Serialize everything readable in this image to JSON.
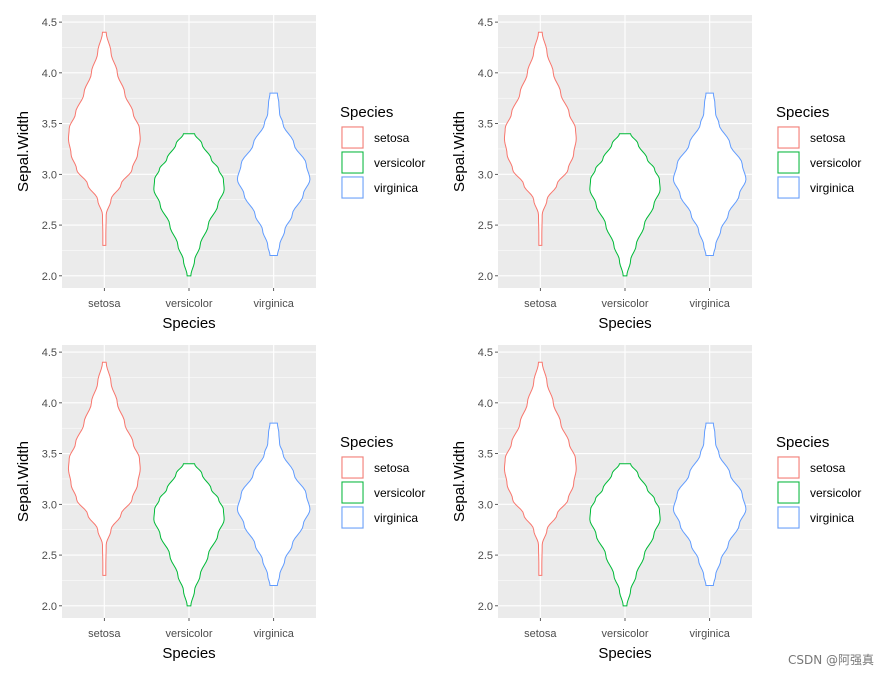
{
  "watermark": "CSDN @阿强真",
  "colors": {
    "panel_bg": "#EBEBEB",
    "grid": "#FFFFFF",
    "tick_text": "#4D4D4D",
    "setosa": "#F8766D",
    "versicolor": "#00BA38",
    "virginica": "#619CFF"
  },
  "chart_data": [
    {
      "type": "violin",
      "xlabel": "Species",
      "ylabel": "Sepal.Width",
      "categories": [
        "setosa",
        "versicolor",
        "virginica"
      ],
      "ylim": [
        1.88,
        4.57
      ],
      "yticks": [
        "2.0",
        "2.5",
        "3.0",
        "3.5",
        "4.0",
        "4.5"
      ],
      "legend": {
        "title": "Species",
        "entries": [
          "setosa",
          "versicolor",
          "virginica"
        ],
        "position": "right"
      },
      "series": [
        {
          "name": "setosa",
          "range": [
            2.3,
            4.4
          ],
          "profile": [
            [
              2.3,
              0.04
            ],
            [
              2.4,
              0.04
            ],
            [
              2.6,
              0.05
            ],
            [
              2.75,
              0.18
            ],
            [
              2.9,
              0.45
            ],
            [
              3.05,
              0.75
            ],
            [
              3.2,
              0.9
            ],
            [
              3.35,
              0.97
            ],
            [
              3.45,
              0.95
            ],
            [
              3.6,
              0.78
            ],
            [
              3.8,
              0.55
            ],
            [
              4.0,
              0.35
            ],
            [
              4.2,
              0.18
            ],
            [
              4.4,
              0.05
            ]
          ]
        },
        {
          "name": "versicolor",
          "range": [
            2.0,
            3.4
          ],
          "profile": [
            [
              2.0,
              0.05
            ],
            [
              2.15,
              0.15
            ],
            [
              2.3,
              0.3
            ],
            [
              2.5,
              0.52
            ],
            [
              2.7,
              0.78
            ],
            [
              2.85,
              0.95
            ],
            [
              2.95,
              0.93
            ],
            [
              3.05,
              0.8
            ],
            [
              3.15,
              0.6
            ],
            [
              3.3,
              0.35
            ],
            [
              3.4,
              0.15
            ]
          ]
        },
        {
          "name": "virginica",
          "range": [
            2.2,
            3.8
          ],
          "profile": [
            [
              2.2,
              0.1
            ],
            [
              2.3,
              0.16
            ],
            [
              2.45,
              0.3
            ],
            [
              2.6,
              0.5
            ],
            [
              2.8,
              0.8
            ],
            [
              2.95,
              0.98
            ],
            [
              3.1,
              0.88
            ],
            [
              3.3,
              0.55
            ],
            [
              3.5,
              0.25
            ],
            [
              3.6,
              0.16
            ],
            [
              3.7,
              0.14
            ],
            [
              3.8,
              0.1
            ]
          ]
        }
      ]
    },
    {
      "type": "violin",
      "xlabel": "Species",
      "ylabel": "Sepal.Width",
      "categories": [
        "setosa",
        "versicolor",
        "virginica"
      ],
      "ylim": [
        1.88,
        4.57
      ],
      "yticks": [
        "2.0",
        "2.5",
        "3.0",
        "3.5",
        "4.0",
        "4.5"
      ],
      "legend": {
        "title": "Species",
        "entries": [
          "setosa",
          "versicolor",
          "virginica"
        ],
        "position": "right"
      },
      "series": [
        {
          "name": "setosa",
          "range": [
            2.3,
            4.4
          ],
          "profile": [
            [
              2.3,
              0.04
            ],
            [
              2.4,
              0.04
            ],
            [
              2.6,
              0.05
            ],
            [
              2.75,
              0.18
            ],
            [
              2.9,
              0.45
            ],
            [
              3.05,
              0.75
            ],
            [
              3.2,
              0.9
            ],
            [
              3.35,
              0.97
            ],
            [
              3.45,
              0.95
            ],
            [
              3.6,
              0.78
            ],
            [
              3.8,
              0.55
            ],
            [
              4.0,
              0.35
            ],
            [
              4.2,
              0.18
            ],
            [
              4.4,
              0.05
            ]
          ]
        },
        {
          "name": "versicolor",
          "range": [
            2.0,
            3.4
          ],
          "profile": [
            [
              2.0,
              0.05
            ],
            [
              2.15,
              0.15
            ],
            [
              2.3,
              0.3
            ],
            [
              2.5,
              0.52
            ],
            [
              2.7,
              0.78
            ],
            [
              2.85,
              0.95
            ],
            [
              2.95,
              0.93
            ],
            [
              3.05,
              0.8
            ],
            [
              3.15,
              0.6
            ],
            [
              3.3,
              0.35
            ],
            [
              3.4,
              0.15
            ]
          ]
        },
        {
          "name": "virginica",
          "range": [
            2.2,
            3.8
          ],
          "profile": [
            [
              2.2,
              0.1
            ],
            [
              2.3,
              0.16
            ],
            [
              2.45,
              0.3
            ],
            [
              2.6,
              0.5
            ],
            [
              2.8,
              0.8
            ],
            [
              2.95,
              0.98
            ],
            [
              3.1,
              0.88
            ],
            [
              3.3,
              0.55
            ],
            [
              3.5,
              0.25
            ],
            [
              3.6,
              0.16
            ],
            [
              3.7,
              0.14
            ],
            [
              3.8,
              0.1
            ]
          ]
        }
      ]
    },
    {
      "type": "violin",
      "xlabel": "Species",
      "ylabel": "Sepal.Width",
      "categories": [
        "setosa",
        "versicolor",
        "virginica"
      ],
      "ylim": [
        1.88,
        4.57
      ],
      "yticks": [
        "2.0",
        "2.5",
        "3.0",
        "3.5",
        "4.0",
        "4.5"
      ],
      "legend": {
        "title": "Species",
        "entries": [
          "setosa",
          "versicolor",
          "virginica"
        ],
        "position": "right"
      },
      "series": [
        {
          "name": "setosa",
          "range": [
            2.3,
            4.4
          ],
          "profile": [
            [
              2.3,
              0.04
            ],
            [
              2.4,
              0.04
            ],
            [
              2.6,
              0.05
            ],
            [
              2.75,
              0.18
            ],
            [
              2.9,
              0.45
            ],
            [
              3.05,
              0.75
            ],
            [
              3.2,
              0.9
            ],
            [
              3.35,
              0.97
            ],
            [
              3.45,
              0.95
            ],
            [
              3.6,
              0.78
            ],
            [
              3.8,
              0.55
            ],
            [
              4.0,
              0.35
            ],
            [
              4.2,
              0.18
            ],
            [
              4.4,
              0.05
            ]
          ]
        },
        {
          "name": "versicolor",
          "range": [
            2.0,
            3.4
          ],
          "profile": [
            [
              2.0,
              0.05
            ],
            [
              2.15,
              0.15
            ],
            [
              2.3,
              0.3
            ],
            [
              2.5,
              0.52
            ],
            [
              2.7,
              0.78
            ],
            [
              2.85,
              0.95
            ],
            [
              2.95,
              0.93
            ],
            [
              3.05,
              0.8
            ],
            [
              3.15,
              0.6
            ],
            [
              3.3,
              0.35
            ],
            [
              3.4,
              0.15
            ]
          ]
        },
        {
          "name": "virginica",
          "range": [
            2.2,
            3.8
          ],
          "profile": [
            [
              2.2,
              0.1
            ],
            [
              2.3,
              0.16
            ],
            [
              2.45,
              0.3
            ],
            [
              2.6,
              0.5
            ],
            [
              2.8,
              0.8
            ],
            [
              2.95,
              0.98
            ],
            [
              3.1,
              0.88
            ],
            [
              3.3,
              0.55
            ],
            [
              3.5,
              0.25
            ],
            [
              3.6,
              0.16
            ],
            [
              3.7,
              0.14
            ],
            [
              3.8,
              0.1
            ]
          ]
        }
      ]
    },
    {
      "type": "violin",
      "xlabel": "Species",
      "ylabel": "Sepal.Width",
      "categories": [
        "setosa",
        "versicolor",
        "virginica"
      ],
      "ylim": [
        1.88,
        4.57
      ],
      "yticks": [
        "2.0",
        "2.5",
        "3.0",
        "3.5",
        "4.0",
        "4.5"
      ],
      "legend": {
        "title": "Species",
        "entries": [
          "setosa",
          "versicolor",
          "virginica"
        ],
        "position": "right"
      },
      "series": [
        {
          "name": "setosa",
          "range": [
            2.3,
            4.4
          ],
          "profile": [
            [
              2.3,
              0.04
            ],
            [
              2.4,
              0.04
            ],
            [
              2.6,
              0.05
            ],
            [
              2.75,
              0.18
            ],
            [
              2.9,
              0.45
            ],
            [
              3.05,
              0.75
            ],
            [
              3.2,
              0.9
            ],
            [
              3.35,
              0.97
            ],
            [
              3.45,
              0.95
            ],
            [
              3.6,
              0.78
            ],
            [
              3.8,
              0.55
            ],
            [
              4.0,
              0.35
            ],
            [
              4.2,
              0.18
            ],
            [
              4.4,
              0.05
            ]
          ]
        },
        {
          "name": "versicolor",
          "range": [
            2.0,
            3.4
          ],
          "profile": [
            [
              2.0,
              0.05
            ],
            [
              2.15,
              0.15
            ],
            [
              2.3,
              0.3
            ],
            [
              2.5,
              0.52
            ],
            [
              2.7,
              0.78
            ],
            [
              2.85,
              0.95
            ],
            [
              2.95,
              0.93
            ],
            [
              3.05,
              0.8
            ],
            [
              3.15,
              0.6
            ],
            [
              3.3,
              0.35
            ],
            [
              3.4,
              0.15
            ]
          ]
        },
        {
          "name": "virginica",
          "range": [
            2.2,
            3.8
          ],
          "profile": [
            [
              2.2,
              0.1
            ],
            [
              2.3,
              0.16
            ],
            [
              2.45,
              0.3
            ],
            [
              2.6,
              0.5
            ],
            [
              2.8,
              0.8
            ],
            [
              2.95,
              0.98
            ],
            [
              3.1,
              0.88
            ],
            [
              3.3,
              0.55
            ],
            [
              3.5,
              0.25
            ],
            [
              3.6,
              0.16
            ],
            [
              3.7,
              0.14
            ],
            [
              3.8,
              0.1
            ]
          ]
        }
      ]
    }
  ]
}
